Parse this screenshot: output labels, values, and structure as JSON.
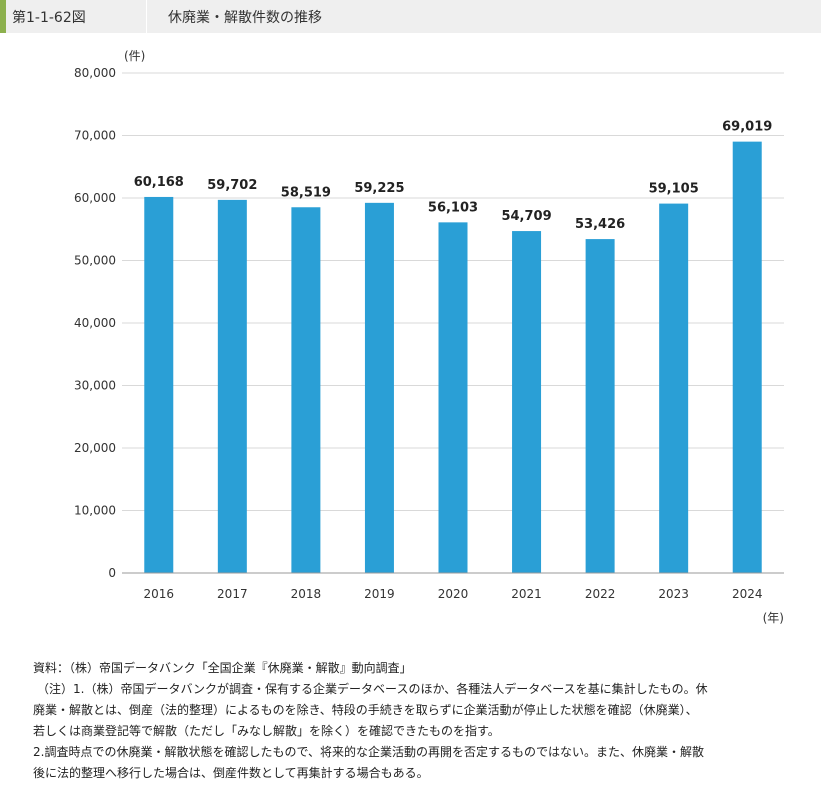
{
  "header": {
    "figure_number": "第1-1-62図",
    "title": "休廃業・解散件数の推移"
  },
  "colors": {
    "bar": "#2a9fd6",
    "accent": "#8cb04d",
    "header_bg": "#efefef"
  },
  "chart_data": {
    "type": "bar",
    "y_unit": "(件)",
    "x_unit": "(年)",
    "categories": [
      "2016",
      "2017",
      "2018",
      "2019",
      "2020",
      "2021",
      "2022",
      "2023",
      "2024"
    ],
    "values": [
      60168,
      59702,
      58519,
      59225,
      56103,
      54709,
      53426,
      59105,
      69019
    ],
    "value_labels": [
      "60,168",
      "59,702",
      "58,519",
      "59,225",
      "56,103",
      "54,709",
      "53,426",
      "59,105",
      "69,019"
    ],
    "ylim": [
      0,
      80000
    ],
    "yticks": [
      0,
      10000,
      20000,
      30000,
      40000,
      50000,
      60000,
      70000,
      80000
    ],
    "ytick_labels": [
      "0",
      "10,000",
      "20,000",
      "30,000",
      "40,000",
      "50,000",
      "60,000",
      "70,000",
      "80,000"
    ],
    "grid": true
  },
  "notes": {
    "source": "資料：（株）帝国データバンク「全国企業『休廃業・解散』動向調査」",
    "note1_line1": "（注）1.（株）帝国データバンクが調査・保有する企業データベースのほか、各種法人データベースを基に集計したもの。休",
    "note1_line2": "廃業・解散とは、倒産（法的整理）によるものを除き、特段の手続きを取らずに企業活動が停止した状態を確認（休廃業）、",
    "note1_line3": "若しくは商業登記等で解散（ただし「みなし解散」を除く）を確認できたものを指す。",
    "note2_line1": "2.調査時点での休廃業・解散状態を確認したもので、将来的な企業活動の再開を否定するものではない。また、休廃業・解散",
    "note2_line2": "後に法的整理へ移行した場合は、倒産件数として再集計する場合もある。"
  }
}
